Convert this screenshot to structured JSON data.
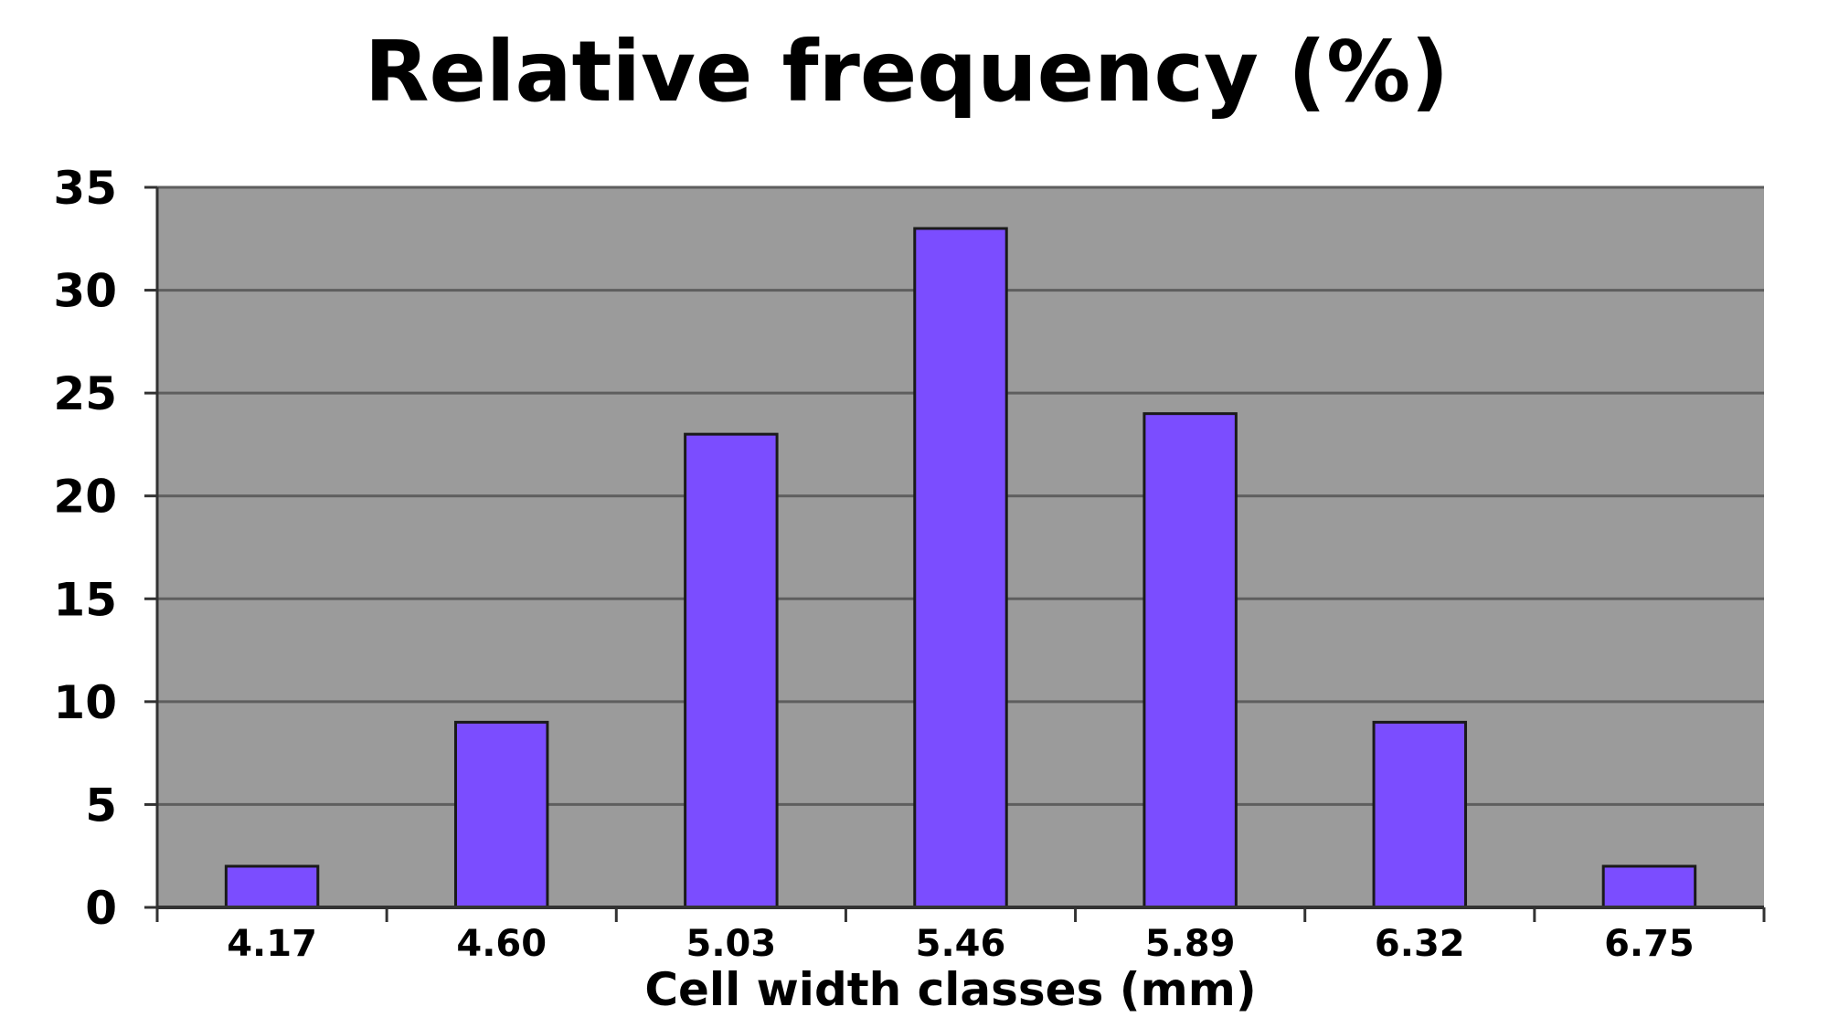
{
  "chart_data": {
    "type": "bar",
    "title": "Relative frequency (%)",
    "xlabel": "Cell width classes (mm)",
    "ylabel": "",
    "categories": [
      "4.17",
      "4.60",
      "5.03",
      "5.46",
      "5.89",
      "6.32",
      "6.75"
    ],
    "values": [
      2,
      9,
      23,
      33,
      24,
      9,
      2
    ],
    "ylim": [
      0,
      35
    ],
    "yticks": [
      0,
      5,
      10,
      15,
      20,
      25,
      30,
      35
    ],
    "grid": true,
    "legend": "none"
  },
  "colors": {
    "plot_background": "#9b9b9b",
    "bar_fill": "#7b4dff",
    "bar_stroke": "#1a1a1a",
    "gridline": "#5e5e5e",
    "axis": "#333333",
    "text": "#000000",
    "page_background": "#ffffff"
  }
}
